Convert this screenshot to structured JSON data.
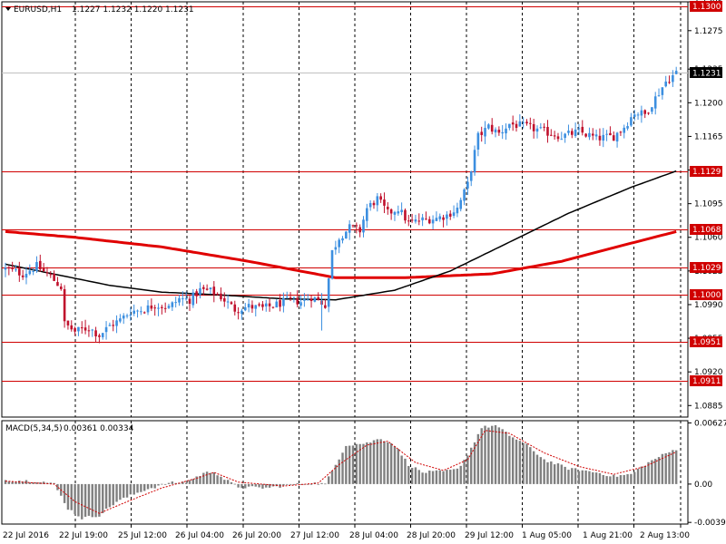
{
  "header": {
    "symbol_timeframe": "EURUSD,H1",
    "ohlc": "1.1227 1.1232 1.1220 1.1231"
  },
  "macd_header": {
    "label": "MACD(5,34,5)",
    "values": "0.00361 0.00334"
  },
  "colors": {
    "background": "#ffffff",
    "grid": "#000000",
    "bull": "#3c8fe0",
    "bear": "#c0102c",
    "level_line": "#d00000",
    "ma_slow": "#e00000",
    "ma_fast": "#000000",
    "histogram": "#808080",
    "signal": "#d00000",
    "current_price": "#c0c0c0"
  },
  "chart_data": [
    {
      "type": "candlestick",
      "symbol": "EURUSD",
      "timeframe": "H1",
      "y_ticks": [
        "1.1305",
        "1.1275",
        "1.1235",
        "1.1200",
        "1.1165",
        "1.1130",
        "1.1095",
        "1.1060",
        "1.1025",
        "1.0990",
        "1.0955",
        "1.0920",
        "1.0885"
      ],
      "ylim": [
        1.0873,
        1.1305
      ],
      "x_ticks": [
        "22 Jul 2016",
        "22 Jul 19:00",
        "25 Jul 12:00",
        "26 Jul 04:00",
        "26 Jul 20:00",
        "27 Jul 12:00",
        "28 Jul 04:00",
        "28 Jul 20:00",
        "29 Jul 12:00",
        "1 Aug 05:00",
        "1 Aug 21:00",
        "2 Aug 13:00"
      ],
      "levels": [
        {
          "value": 1.13,
          "label": "1.1300"
        },
        {
          "value": 1.1129,
          "label": "1.1129"
        },
        {
          "value": 1.1068,
          "label": "1.1068"
        },
        {
          "value": 1.1029,
          "label": "1.1029"
        },
        {
          "value": 1.1,
          "label": "1.1000"
        },
        {
          "value": 1.0951,
          "label": "1.0951"
        },
        {
          "value": 1.0911,
          "label": "1.0911"
        }
      ],
      "current_price": {
        "value": 1.1231,
        "label": "1.1231"
      },
      "close_path": [
        [
          0,
          1.1027
        ],
        [
          5,
          1.1022
        ],
        [
          9,
          1.103
        ],
        [
          13,
          1.1019
        ],
        [
          16,
          1.1008
        ],
        [
          17,
          1.097
        ],
        [
          20,
          1.0962
        ],
        [
          24,
          1.0966
        ],
        [
          27,
          1.0958
        ],
        [
          30,
          1.0968
        ],
        [
          33,
          1.0974
        ],
        [
          36,
          1.0983
        ],
        [
          40,
          1.0985
        ],
        [
          43,
          1.099
        ],
        [
          47,
          1.0987
        ],
        [
          50,
          1.0996
        ],
        [
          53,
          1.0995
        ],
        [
          56,
          1.1005
        ],
        [
          59,
          1.1004
        ],
        [
          62,
          1.0998
        ],
        [
          66,
          1.0985
        ],
        [
          70,
          1.0988
        ],
        [
          74,
          1.0986
        ],
        [
          78,
          1.099
        ],
        [
          82,
          1.0995
        ],
        [
          85,
          1.0993
        ],
        [
          88,
          1.0998
        ],
        [
          92,
          1.099
        ],
        [
          94,
          1.1045
        ],
        [
          96,
          1.106
        ],
        [
          99,
          1.107
        ],
        [
          102,
          1.1067
        ],
        [
          104,
          1.109
        ],
        [
          107,
          1.11
        ],
        [
          110,
          1.1085
        ],
        [
          113,
          1.109
        ],
        [
          116,
          1.1075
        ],
        [
          120,
          1.1078
        ],
        [
          124,
          1.108
        ],
        [
          127,
          1.1083
        ],
        [
          130,
          1.109
        ],
        [
          133,
          1.1115
        ],
        [
          136,
          1.1165
        ],
        [
          139,
          1.1175
        ],
        [
          142,
          1.1168
        ],
        [
          145,
          1.1178
        ],
        [
          150,
          1.1175
        ],
        [
          155,
          1.117
        ],
        [
          160,
          1.1165
        ],
        [
          165,
          1.117
        ],
        [
          170,
          1.1163
        ],
        [
          175,
          1.1165
        ],
        [
          178,
          1.1175
        ],
        [
          181,
          1.119
        ],
        [
          184,
          1.1188
        ],
        [
          187,
          1.1205
        ],
        [
          190,
          1.1222
        ],
        [
          193,
          1.1231
        ]
      ],
      "ma_slow_path": [
        [
          0,
          1.1066
        ],
        [
          20,
          1.106
        ],
        [
          45,
          1.105
        ],
        [
          70,
          1.1035
        ],
        [
          95,
          1.1018
        ],
        [
          115,
          1.1018
        ],
        [
          140,
          1.1022
        ],
        [
          160,
          1.1035
        ],
        [
          178,
          1.1052
        ],
        [
          193,
          1.1066
        ]
      ],
      "ma_fast_path": [
        [
          0,
          1.1032
        ],
        [
          15,
          1.1021
        ],
        [
          30,
          1.101
        ],
        [
          45,
          1.1003
        ],
        [
          62,
          1.1
        ],
        [
          80,
          1.0996
        ],
        [
          95,
          1.0995
        ],
        [
          112,
          1.1005
        ],
        [
          128,
          1.1025
        ],
        [
          145,
          1.1055
        ],
        [
          162,
          1.1085
        ],
        [
          180,
          1.1112
        ],
        [
          193,
          1.1129
        ]
      ]
    },
    {
      "type": "bar",
      "name": "MACD(5,34,5)",
      "y_ticks": [
        "0.00627",
        "0.00",
        "-0.00393"
      ],
      "ylim": [
        -0.0041,
        0.0065
      ],
      "histogram_path": [
        [
          0,
          0.0004
        ],
        [
          10,
          0.0003
        ],
        [
          14,
          0.0
        ],
        [
          18,
          -0.0025
        ],
        [
          22,
          -0.0035
        ],
        [
          27,
          -0.0032
        ],
        [
          32,
          -0.0018
        ],
        [
          40,
          -0.0006
        ],
        [
          47,
          0.0001
        ],
        [
          52,
          0.0002
        ],
        [
          57,
          0.0011
        ],
        [
          60,
          0.0013
        ],
        [
          63,
          0.0005
        ],
        [
          67,
          -0.0003
        ],
        [
          75,
          -0.0004
        ],
        [
          82,
          -0.0001
        ],
        [
          88,
          0.0001
        ],
        [
          92,
          0.0
        ],
        [
          95,
          0.002
        ],
        [
          98,
          0.004
        ],
        [
          104,
          0.0042
        ],
        [
          108,
          0.0047
        ],
        [
          112,
          0.004
        ],
        [
          116,
          0.002
        ],
        [
          120,
          0.0012
        ],
        [
          126,
          0.0013
        ],
        [
          130,
          0.0015
        ],
        [
          133,
          0.003
        ],
        [
          137,
          0.0058
        ],
        [
          141,
          0.006
        ],
        [
          145,
          0.005
        ],
        [
          150,
          0.004
        ],
        [
          155,
          0.0025
        ],
        [
          162,
          0.0016
        ],
        [
          170,
          0.0012
        ],
        [
          175,
          0.0008
        ],
        [
          180,
          0.001
        ],
        [
          184,
          0.002
        ],
        [
          188,
          0.0028
        ],
        [
          193,
          0.0036
        ]
      ],
      "signal_path": [
        [
          0,
          0.0003
        ],
        [
          14,
          0.0
        ],
        [
          20,
          -0.0018
        ],
        [
          27,
          -0.003
        ],
        [
          35,
          -0.0018
        ],
        [
          45,
          -0.0004
        ],
        [
          55,
          0.0006
        ],
        [
          60,
          0.0012
        ],
        [
          67,
          0.0002
        ],
        [
          80,
          -0.0002
        ],
        [
          90,
          0.0001
        ],
        [
          96,
          0.002
        ],
        [
          104,
          0.004
        ],
        [
          110,
          0.0044
        ],
        [
          118,
          0.0022
        ],
        [
          126,
          0.0014
        ],
        [
          133,
          0.0025
        ],
        [
          138,
          0.0055
        ],
        [
          145,
          0.0052
        ],
        [
          155,
          0.0032
        ],
        [
          165,
          0.0018
        ],
        [
          175,
          0.001
        ],
        [
          184,
          0.0018
        ],
        [
          193,
          0.0033
        ]
      ]
    }
  ]
}
